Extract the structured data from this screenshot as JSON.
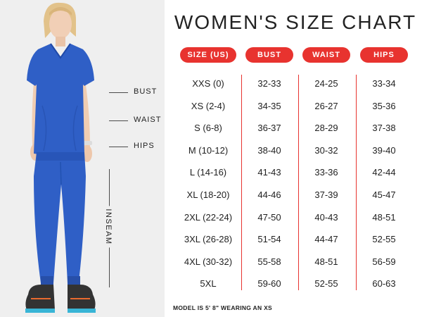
{
  "title": "WOMEN'S SIZE CHART",
  "headers": [
    "SIZE (US)",
    "BUST",
    "WAIST",
    "HIPS"
  ],
  "rows": [
    [
      "XXS (0)",
      "32-33",
      "24-25",
      "33-34"
    ],
    [
      "XS (2-4)",
      "34-35",
      "26-27",
      "35-36"
    ],
    [
      "S (6-8)",
      "36-37",
      "28-29",
      "37-38"
    ],
    [
      "M (10-12)",
      "38-40",
      "30-32",
      "39-40"
    ],
    [
      "L (14-16)",
      "41-43",
      "33-36",
      "42-44"
    ],
    [
      "XL (18-20)",
      "44-46",
      "37-39",
      "45-47"
    ],
    [
      "2XL (22-24)",
      "47-50",
      "40-43",
      "48-51"
    ],
    [
      "3XL (26-28)",
      "51-54",
      "44-47",
      "52-55"
    ],
    [
      "4XL (30-32)",
      "55-58",
      "48-51",
      "56-59"
    ],
    [
      "5XL",
      "59-60",
      "52-55",
      "60-63"
    ]
  ],
  "measurements": {
    "bust": "BUST",
    "waist": "WAIST",
    "hips": "HIPS",
    "inseam": "INSEAM"
  },
  "footnote": "MODEL IS 5' 8\" WEARING AN XS",
  "colors": {
    "accent": "#e8332f",
    "scrubs": "#2f5fc6",
    "panel": "#efefef"
  }
}
